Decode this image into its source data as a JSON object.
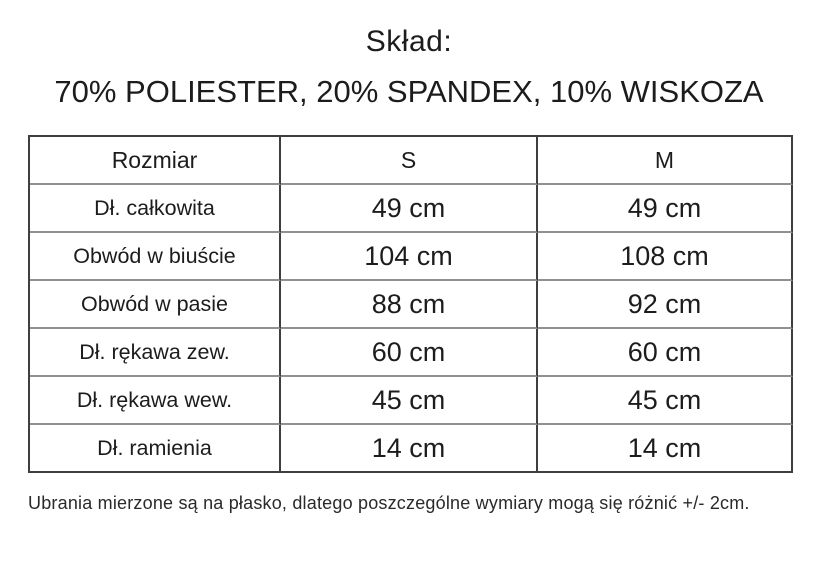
{
  "header": {
    "title": "Skład:",
    "composition": "70% POLIESTER, 20% SPANDEX, 10% WISKOZA"
  },
  "size_table": {
    "columns": [
      "Rozmiar",
      "S",
      "M"
    ],
    "rows": [
      {
        "label": "Dł. całkowita",
        "s": "49 cm",
        "m": "49 cm"
      },
      {
        "label": "Obwód w biuście",
        "s": "104 cm",
        "m": "108 cm"
      },
      {
        "label": "Obwód w pasie",
        "s": "88 cm",
        "m": "92 cm"
      },
      {
        "label": "Dł. rękawa zew.",
        "s": "60 cm",
        "m": "60 cm"
      },
      {
        "label": "Dł. rękawa wew.",
        "s": "45 cm",
        "m": "45 cm"
      },
      {
        "label": "Dł. ramienia",
        "s": "14 cm",
        "m": "14 cm"
      }
    ]
  },
  "footnote": {
    "text": "Ubrania mierzone są na płasko, dlatego poszczególne wymiary mogą się różnić +/- 2cm."
  },
  "colors": {
    "background": "#ffffff",
    "text": "#1c1c1c",
    "table_border_dark": "#3f3f3f",
    "table_border_light": "#919191"
  }
}
